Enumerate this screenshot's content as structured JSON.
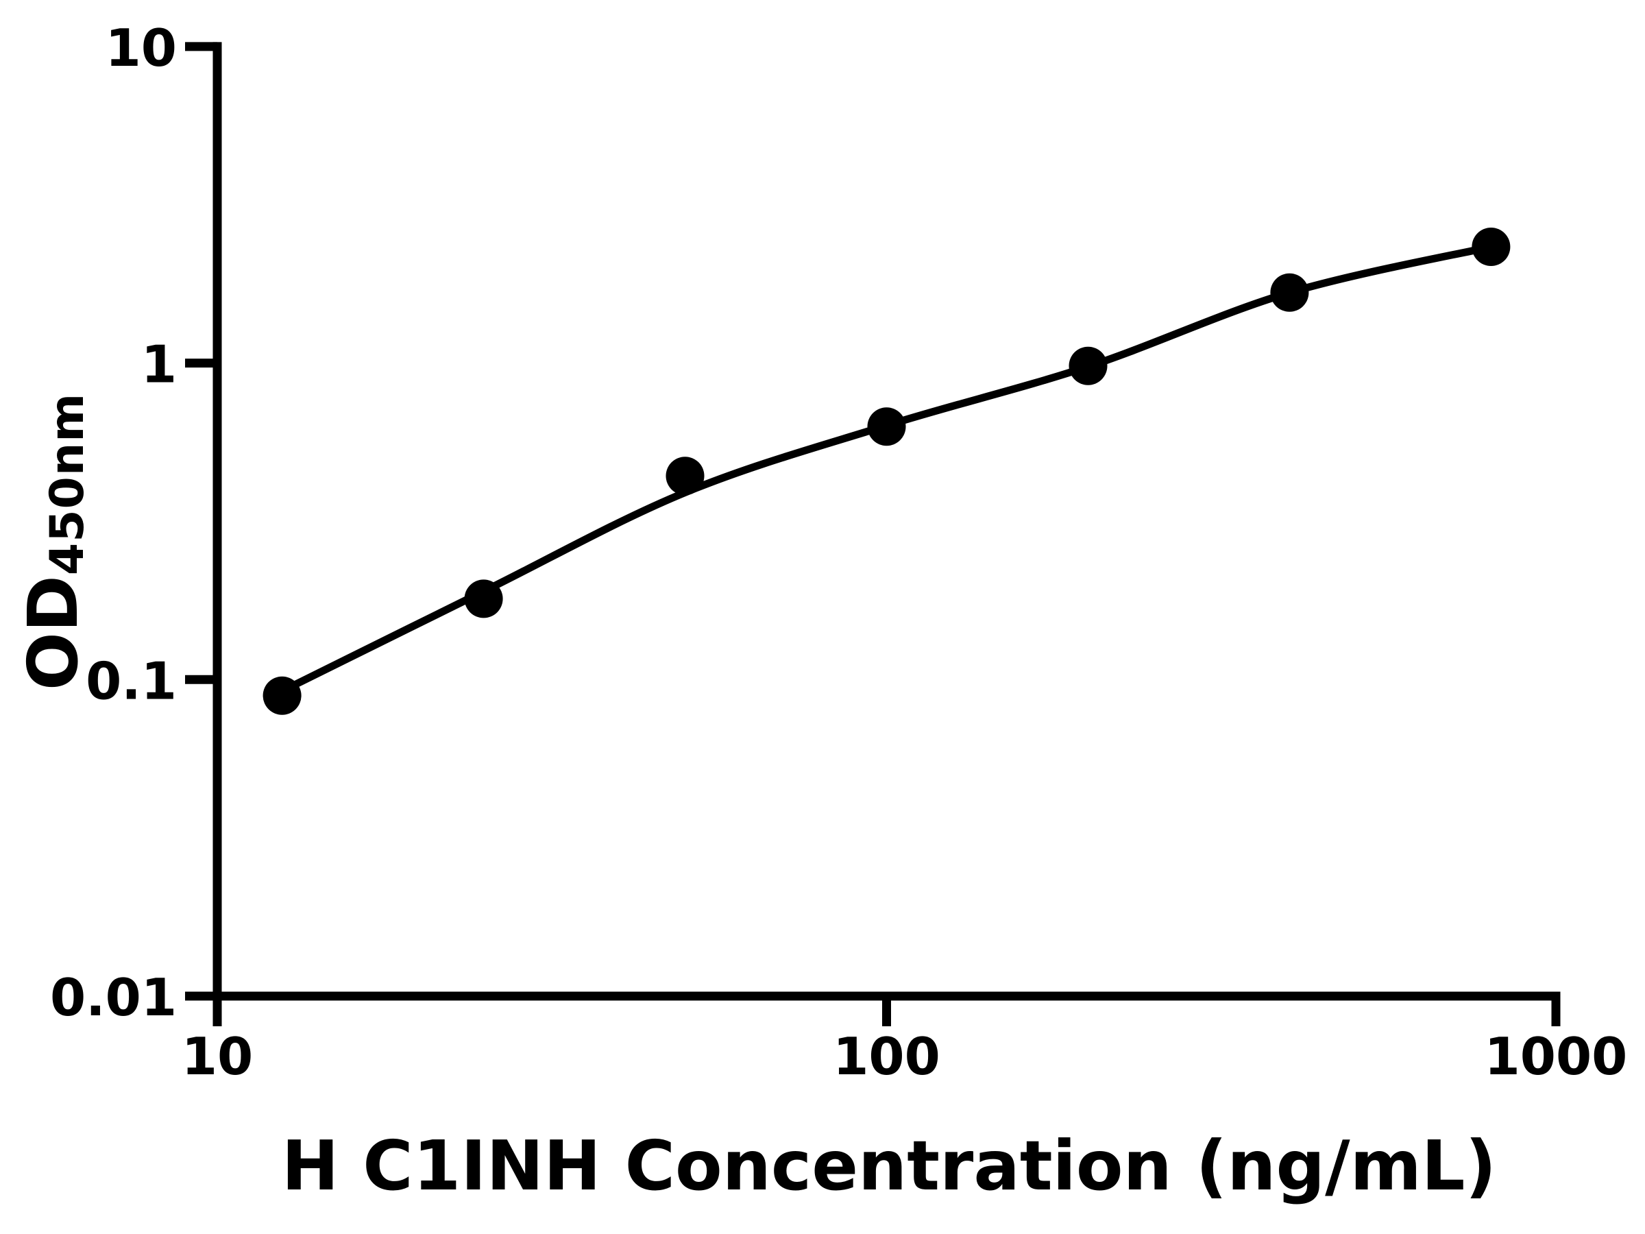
{
  "figure": {
    "background_color": "#ffffff",
    "ink_color": "#000000"
  },
  "chart_data": {
    "type": "scatter",
    "title": "",
    "xlabel": "H C1INH Concentration (ng/mL)",
    "ylabel": "OD450nm",
    "ylabel_main": "OD",
    "ylabel_sub": "450nm",
    "x_scale": "log",
    "y_scale": "log",
    "xlim": [
      10,
      1000
    ],
    "ylim": [
      0.01,
      10
    ],
    "grid": false,
    "legend": false,
    "x_ticks": [
      {
        "value": 10,
        "label": "10"
      },
      {
        "value": 100,
        "label": "100"
      },
      {
        "value": 1000,
        "label": "1000"
      }
    ],
    "y_ticks": [
      {
        "value": 10,
        "label": "10"
      },
      {
        "value": 1,
        "label": "1"
      },
      {
        "value": 0.1,
        "label": "0.1"
      },
      {
        "value": 0.01,
        "label": "0.01"
      }
    ],
    "series": [
      {
        "name": "standard_points",
        "kind": "scatter",
        "marker": "filled-circle",
        "color": "#000000",
        "x": [
          12.5,
          25,
          50,
          100,
          200,
          400,
          800
        ],
        "y": [
          0.089,
          0.18,
          0.44,
          0.63,
          0.98,
          1.67,
          2.33
        ]
      },
      {
        "name": "fit_curve",
        "kind": "line",
        "color": "#000000",
        "x": [
          12.5,
          25,
          50,
          100,
          200,
          400,
          800
        ],
        "y": [
          0.092,
          0.19,
          0.39,
          0.635,
          0.975,
          1.67,
          2.33
        ]
      }
    ]
  }
}
